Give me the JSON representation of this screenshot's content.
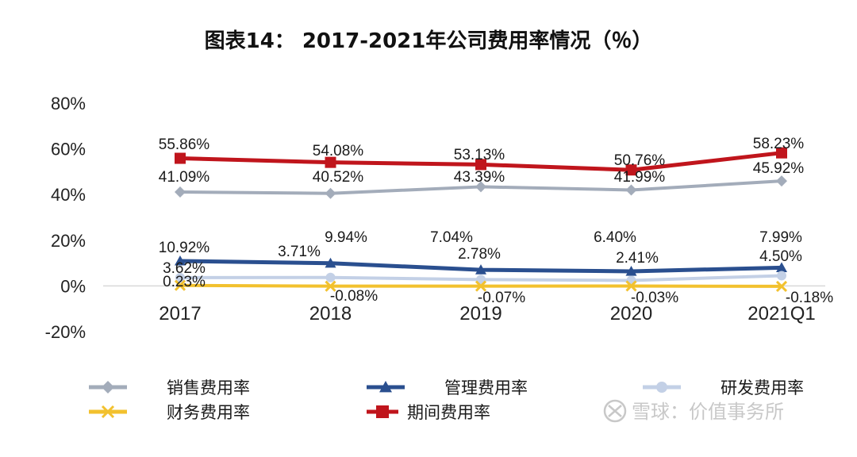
{
  "chart_data": {
    "type": "line",
    "title": "图表14： 2017-2021年公司费用率情况（％）",
    "xlabel": "",
    "ylabel": "",
    "categories": [
      "2017",
      "2018",
      "2019",
      "2020",
      "2021Q1"
    ],
    "ylim": [
      -20,
      80
    ],
    "yticks": [
      -20,
      0,
      20,
      40,
      60,
      80
    ],
    "ytick_labels": [
      "-20%",
      "0%",
      "20%",
      "40%",
      "60%",
      "80%"
    ],
    "grid": false,
    "legend_position": "bottom",
    "series": [
      {
        "name": "销售费用率",
        "values": [
          41.09,
          40.52,
          43.39,
          41.99,
          45.92
        ],
        "labels": [
          "41.09%",
          "40.52%",
          "43.39%",
          "41.99%",
          "45.92%"
        ],
        "color": "#a3acba",
        "marker": "diamond"
      },
      {
        "name": "管理费用率",
        "values": [
          10.92,
          9.94,
          7.04,
          6.4,
          7.99
        ],
        "labels": [
          "10.92%",
          "9.94%",
          "7.04%",
          "6.40%",
          "7.99%"
        ],
        "color": "#2a4f8f",
        "marker": "triangle"
      },
      {
        "name": "研发费用率",
        "values": [
          3.62,
          3.71,
          2.78,
          2.41,
          4.5
        ],
        "labels": [
          "3.62%",
          "3.71%",
          "2.78%",
          "2.41%",
          "4.50%"
        ],
        "color": "#c3d0e6",
        "marker": "circle"
      },
      {
        "name": "财务费用率",
        "values": [
          0.23,
          -0.08,
          -0.07,
          -0.03,
          -0.18
        ],
        "labels": [
          "0.23%",
          "-0.08%",
          "-0.07%",
          "-0.03%",
          "-0.18%"
        ],
        "color": "#f2c12e",
        "marker": "x"
      },
      {
        "name": "期间费用率",
        "values": [
          55.86,
          54.08,
          53.13,
          50.76,
          58.23
        ],
        "labels": [
          "55.86%",
          "54.08%",
          "53.13%",
          "50.76%",
          "58.23%"
        ],
        "color": "#c0151c",
        "marker": "square"
      }
    ]
  },
  "watermark": {
    "text": "雪球：价值事务所",
    "icon": "xueqiu-logo-icon"
  }
}
